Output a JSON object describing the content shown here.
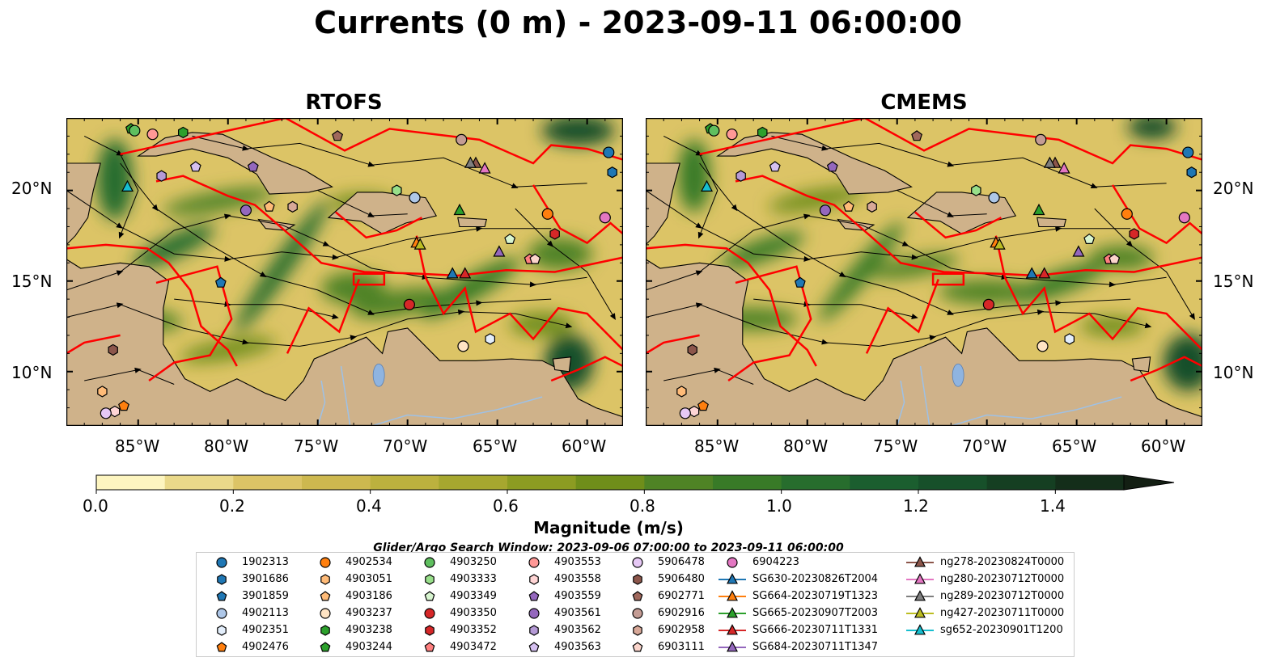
{
  "title": "Currents (0 m) - 2023-09-11 06:00:00",
  "panels": {
    "left_title": "RTOFS",
    "right_title": "CMEMS"
  },
  "axes": {
    "lon_ticks": [
      "85°W",
      "80°W",
      "75°W",
      "70°W",
      "65°W",
      "60°W"
    ],
    "lat_ticks": [
      "20°N",
      "15°N",
      "10°N"
    ]
  },
  "colorbar": {
    "label": "Magnitude (m/s)",
    "tick_labels": [
      "0.0",
      "0.2",
      "0.4",
      "0.6",
      "0.8",
      "1.0",
      "1.2",
      "1.4"
    ],
    "colors": [
      "#fdf5c0",
      "#ead98a",
      "#dcc466",
      "#cdb84f",
      "#bcb13e",
      "#a6a72f",
      "#8c9c22",
      "#6f8e1a",
      "#4f8325",
      "#387a27",
      "#276d2d",
      "#1b5e2f",
      "#17502a",
      "#153f22",
      "#142e1a",
      "#131f13"
    ]
  },
  "search_window": "Glider/Argo Search Window: 2023-09-06 07:00:00 to 2023-09-11 06:00:00",
  "legend": [
    {
      "label": "1902313",
      "marker": "circle",
      "color": "#1f77b4"
    },
    {
      "label": "3901686",
      "marker": "hexagon",
      "color": "#1f77b4"
    },
    {
      "label": "3901859",
      "marker": "pentagon",
      "color": "#1f77b4"
    },
    {
      "label": "4902113",
      "marker": "circle",
      "color": "#aec7e8"
    },
    {
      "label": "4902351",
      "marker": "hexagon",
      "color": "#e3eefb"
    },
    {
      "label": "4902476",
      "marker": "pentagon",
      "color": "#ff7f0e"
    },
    {
      "label": "4902534",
      "marker": "circle",
      "color": "#ff7f0e"
    },
    {
      "label": "4903051",
      "marker": "hexagon",
      "color": "#ffbb78"
    },
    {
      "label": "4903186",
      "marker": "pentagon",
      "color": "#ffbb78"
    },
    {
      "label": "4903237",
      "marker": "circle",
      "color": "#ffe4c4"
    },
    {
      "label": "4903238",
      "marker": "hexagon",
      "color": "#2ca02c"
    },
    {
      "label": "4903244",
      "marker": "pentagon",
      "color": "#2ca02c"
    },
    {
      "label": "4903250",
      "marker": "circle",
      "color": "#5fbf5f"
    },
    {
      "label": "4903333",
      "marker": "hexagon",
      "color": "#98df8a"
    },
    {
      "label": "4903349",
      "marker": "pentagon",
      "color": "#d8f5d0"
    },
    {
      "label": "4903350",
      "marker": "circle",
      "color": "#d62728"
    },
    {
      "label": "4903352",
      "marker": "hexagon",
      "color": "#d62728"
    },
    {
      "label": "4903472",
      "marker": "pentagon",
      "color": "#ff7f7f"
    },
    {
      "label": "4903553",
      "marker": "circle",
      "color": "#ff9896"
    },
    {
      "label": "4903558",
      "marker": "hexagon",
      "color": "#ffd5d5"
    },
    {
      "label": "4903559",
      "marker": "pentagon",
      "color": "#9467bd"
    },
    {
      "label": "4903561",
      "marker": "circle",
      "color": "#9467bd"
    },
    {
      "label": "4903562",
      "marker": "hexagon",
      "color": "#b59ad6"
    },
    {
      "label": "4903563",
      "marker": "pentagon",
      "color": "#d5c0f0"
    },
    {
      "label": "5906478",
      "marker": "circle",
      "color": "#e6c8f5"
    },
    {
      "label": "5906480",
      "marker": "hexagon",
      "color": "#8c564b"
    },
    {
      "label": "6902771",
      "marker": "pentagon",
      "color": "#a0685c"
    },
    {
      "label": "6902916",
      "marker": "circle",
      "color": "#c49c94"
    },
    {
      "label": "6902958",
      "marker": "hexagon",
      "color": "#d8a898"
    },
    {
      "label": "6903111",
      "marker": "pentagon",
      "color": "#fbd5cc"
    },
    {
      "label": "6904223",
      "marker": "circle",
      "color": "#e377c2"
    },
    {
      "label": "SG630-20230826T2004",
      "marker": "triangle-line",
      "color": "#1f77b4"
    },
    {
      "label": "SG664-20230719T1323",
      "marker": "triangle-line",
      "color": "#ff7f0e"
    },
    {
      "label": "SG665-20230907T2003",
      "marker": "triangle-line",
      "color": "#2ca02c"
    },
    {
      "label": "SG666-20230711T1331",
      "marker": "triangle-line",
      "color": "#d62728"
    },
    {
      "label": "SG684-20230711T1347",
      "marker": "triangle-line",
      "color": "#9467bd"
    },
    {
      "label": "ng278-20230824T0000",
      "marker": "triangle-line",
      "color": "#8c564b"
    },
    {
      "label": "ng280-20230712T0000",
      "marker": "triangle-line",
      "color": "#e377c2"
    },
    {
      "label": "ng289-20230712T0000",
      "marker": "triangle-line",
      "color": "#7f7f7f"
    },
    {
      "label": "ng427-20230711T0000",
      "marker": "triangle-line",
      "color": "#bcbd22"
    },
    {
      "label": "sg652-20230901T1200",
      "marker": "triangle-line",
      "color": "#17becf"
    }
  ],
  "chart_data": {
    "type": "heatmap",
    "title": "Currents (0 m) - 2023-09-11 06:00:00",
    "panels": [
      "RTOFS",
      "CMEMS"
    ],
    "variable": "Magnitude (m/s)",
    "colorbar_range": [
      0.0,
      1.5
    ],
    "colorbar_extend": "max",
    "lon_range": [
      -89,
      -58
    ],
    "lat_range": [
      7,
      24
    ],
    "colors": {
      "land": "#cfb28a",
      "boundaries": "#ff0000",
      "streamlines": "#000000",
      "rivers": "#9ec1e6"
    },
    "platforms": [
      {
        "id": "1902313",
        "lon": -58.8,
        "lat": 22.1
      },
      {
        "id": "3901686",
        "lon": -58.6,
        "lat": 21.0
      },
      {
        "id": "3901859",
        "lon": -80.4,
        "lat": 14.9
      },
      {
        "id": "4902113",
        "lon": -69.6,
        "lat": 19.6
      },
      {
        "id": "4902351",
        "lon": -65.4,
        "lat": 11.8
      },
      {
        "id": "4902476",
        "lon": -85.8,
        "lat": 8.1
      },
      {
        "id": "4902534",
        "lon": -62.2,
        "lat": 18.7
      },
      {
        "id": "4903051",
        "lon": -87.0,
        "lat": 8.9
      },
      {
        "id": "4903186",
        "lon": -77.7,
        "lat": 19.1
      },
      {
        "id": "4903237",
        "lon": -66.9,
        "lat": 11.4
      },
      {
        "id": "4903238",
        "lon": -82.5,
        "lat": 23.2
      },
      {
        "id": "4903244",
        "lon": -85.4,
        "lat": 23.4
      },
      {
        "id": "4903250",
        "lon": -85.2,
        "lat": 23.3
      },
      {
        "id": "4903333",
        "lon": -70.6,
        "lat": 20.0
      },
      {
        "id": "4903349",
        "lon": -64.3,
        "lat": 17.3
      },
      {
        "id": "4903350",
        "lon": -69.9,
        "lat": 13.7
      },
      {
        "id": "4903352",
        "lon": -61.8,
        "lat": 17.6
      },
      {
        "id": "4903472",
        "lon": -63.2,
        "lat": 16.2
      },
      {
        "id": "4903553",
        "lon": -84.2,
        "lat": 23.1
      },
      {
        "id": "4903558",
        "lon": -86.3,
        "lat": 7.8
      },
      {
        "id": "4903559",
        "lon": -78.6,
        "lat": 21.3
      },
      {
        "id": "4903561",
        "lon": -79.0,
        "lat": 18.9
      },
      {
        "id": "4903562",
        "lon": -83.7,
        "lat": 20.8
      },
      {
        "id": "4903563",
        "lon": -81.8,
        "lat": 21.3
      },
      {
        "id": "5906478",
        "lon": -86.8,
        "lat": 7.7
      },
      {
        "id": "5906480",
        "lon": -86.4,
        "lat": 11.2
      },
      {
        "id": "6902771",
        "lon": -73.9,
        "lat": 23.0
      },
      {
        "id": "6902916",
        "lon": -67.0,
        "lat": 22.8
      },
      {
        "id": "6902958",
        "lon": -76.4,
        "lat": 19.1
      },
      {
        "id": "6903111",
        "lon": -62.9,
        "lat": 16.2
      },
      {
        "id": "6904223",
        "lon": -59.0,
        "lat": 18.5
      },
      {
        "id": "SG630-20230826T2004",
        "lon": -67.5,
        "lat": 15.4
      },
      {
        "id": "SG664-20230719T1323",
        "lon": -69.5,
        "lat": 17.1
      },
      {
        "id": "SG665-20230907T2003",
        "lon": -67.1,
        "lat": 18.9
      },
      {
        "id": "SG666-20230711T1331",
        "lon": -66.8,
        "lat": 15.4
      },
      {
        "id": "SG684-20230711T1347",
        "lon": -64.9,
        "lat": 16.6
      },
      {
        "id": "ng278-20230824T0000",
        "lon": -66.2,
        "lat": 21.5
      },
      {
        "id": "ng280-20230712T0000",
        "lon": -65.7,
        "lat": 21.2
      },
      {
        "id": "ng289-20230712T0000",
        "lon": -66.5,
        "lat": 21.5
      },
      {
        "id": "ng427-20230711T0000",
        "lon": -69.3,
        "lat": 17.0
      },
      {
        "id": "sg652-20230901T1200",
        "lon": -85.6,
        "lat": 20.2
      }
    ]
  }
}
